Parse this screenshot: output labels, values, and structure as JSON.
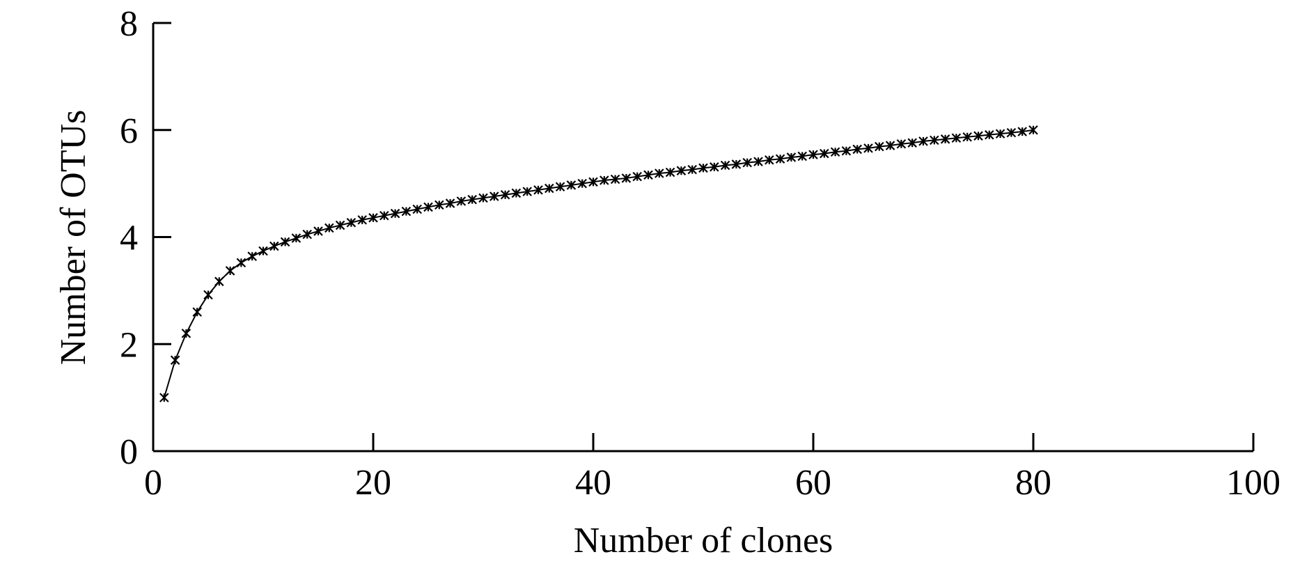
{
  "chart_data": {
    "type": "line",
    "title": "",
    "xlabel": "Number of clones",
    "ylabel": "Number of OTUs",
    "xlim": [
      0,
      100
    ],
    "ylim": [
      0,
      8
    ],
    "xticks": [
      "0",
      "20",
      "40",
      "60",
      "80",
      "100"
    ],
    "yticks": [
      "0",
      "2",
      "4",
      "6",
      "8"
    ],
    "grid": false,
    "legend": "none",
    "marker": "asterisk",
    "series": [
      {
        "x": [
          1,
          2,
          3,
          4,
          5,
          6,
          7,
          8,
          9,
          10,
          11,
          12,
          13,
          14,
          15,
          16,
          17,
          18,
          19,
          20,
          21,
          22,
          23,
          24,
          25,
          26,
          27,
          28,
          29,
          30,
          31,
          32,
          33,
          34,
          35,
          36,
          37,
          38,
          39,
          40,
          41,
          42,
          43,
          44,
          45,
          46,
          47,
          48,
          49,
          50,
          51,
          52,
          53,
          54,
          55,
          56,
          57,
          58,
          59,
          60,
          61,
          62,
          63,
          64,
          65,
          66,
          67,
          68,
          69,
          70,
          71,
          72,
          73,
          74,
          75,
          76,
          77,
          78,
          79,
          80
        ],
        "values": [
          1.0,
          1.7,
          2.2,
          2.6,
          2.92,
          3.17,
          3.37,
          3.52,
          3.64,
          3.74,
          3.83,
          3.91,
          3.98,
          4.05,
          4.11,
          4.17,
          4.22,
          4.27,
          4.32,
          4.36,
          4.4,
          4.44,
          4.48,
          4.52,
          4.56,
          4.6,
          4.63,
          4.67,
          4.7,
          4.73,
          4.76,
          4.79,
          4.82,
          4.85,
          4.88,
          4.91,
          4.94,
          4.97,
          5.0,
          5.03,
          5.06,
          5.08,
          5.1,
          5.13,
          5.16,
          5.19,
          5.21,
          5.24,
          5.26,
          5.29,
          5.31,
          5.34,
          5.36,
          5.39,
          5.41,
          5.44,
          5.46,
          5.49,
          5.51,
          5.54,
          5.56,
          5.59,
          5.61,
          5.64,
          5.66,
          5.69,
          5.71,
          5.74,
          5.76,
          5.79,
          5.81,
          5.83,
          5.85,
          5.87,
          5.89,
          5.91,
          5.93,
          5.95,
          5.97,
          6.0
        ]
      }
    ]
  }
}
